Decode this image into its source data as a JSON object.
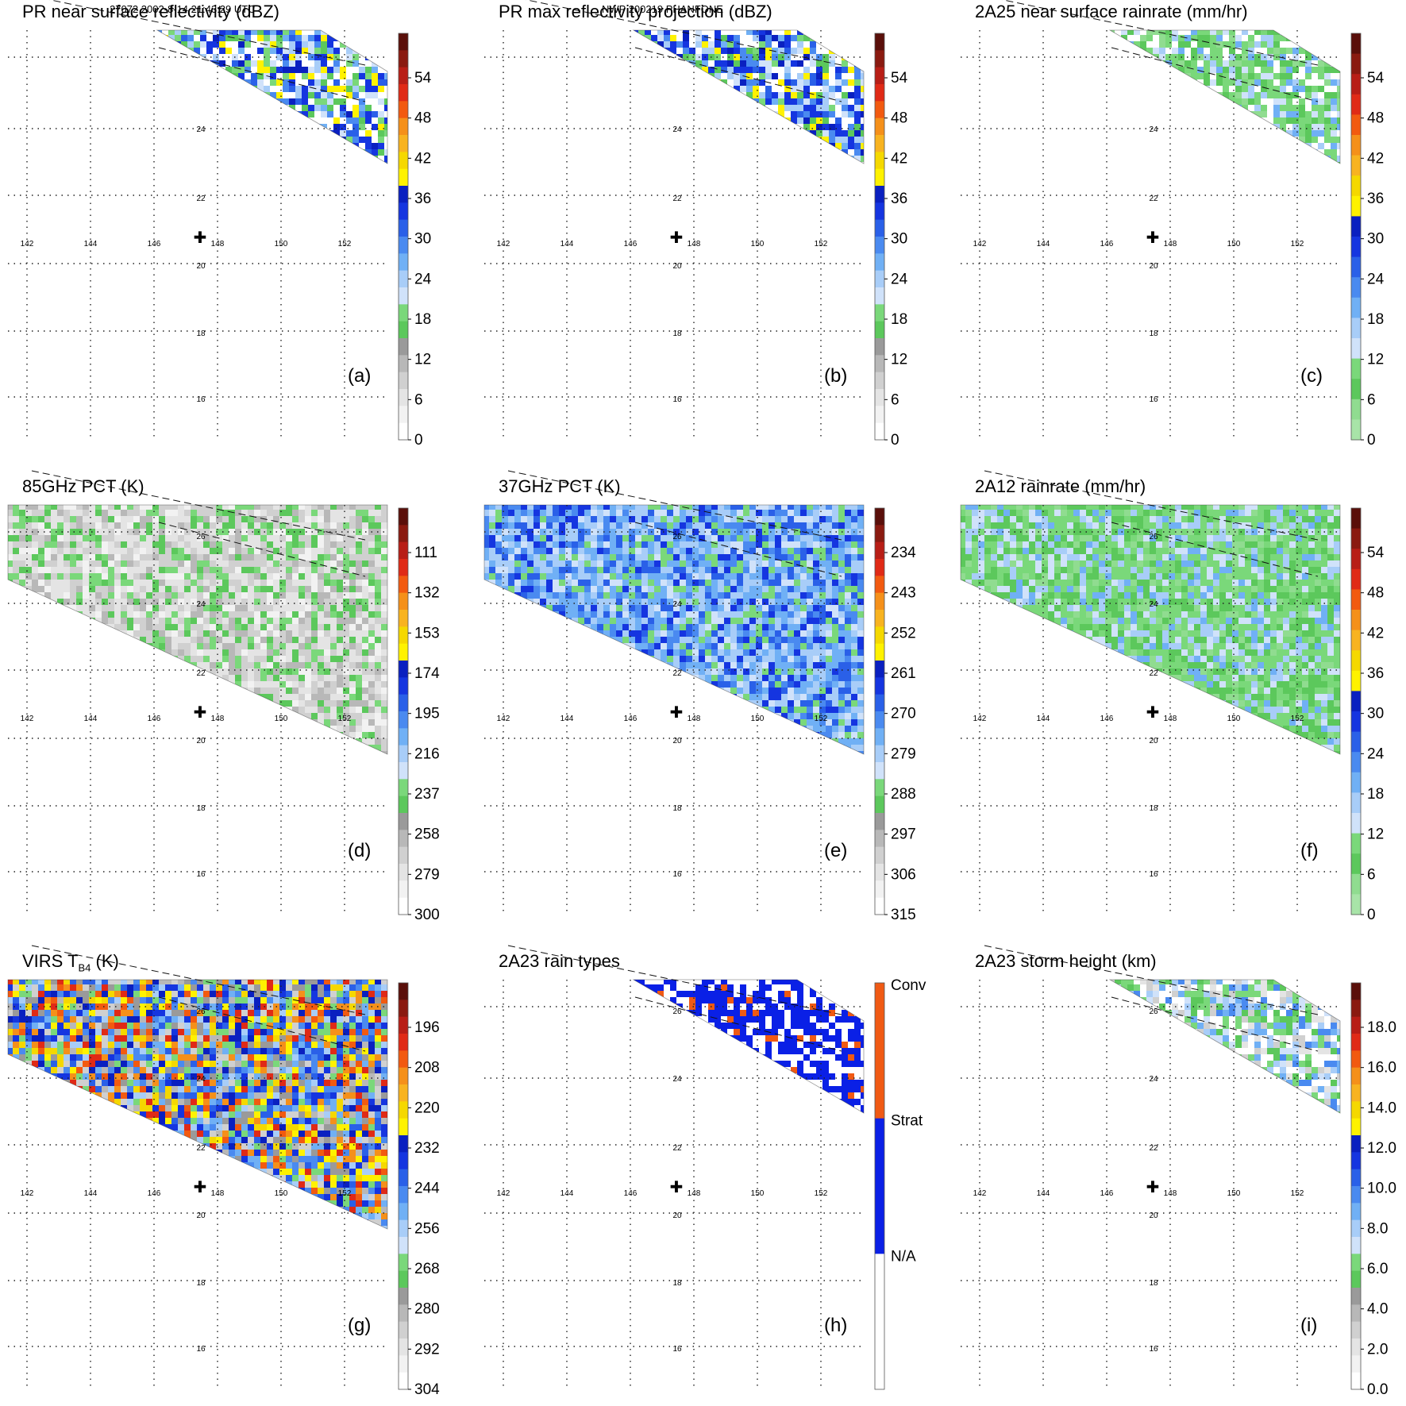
{
  "header": {
    "left": "27072 2002-8-14 21:43:29 UTC",
    "center": "NWP 200219 PHANFONE"
  },
  "map": {
    "lon_ticks": [
      "142",
      "144",
      "146",
      "148",
      "150",
      "152"
    ],
    "lat_ticks": [
      "16",
      "18",
      "20",
      "22",
      "24",
      "26"
    ],
    "center_marker": "storm-center-cross"
  },
  "panels": [
    {
      "id": "a",
      "title": "PR near surface reflectivity (dBZ)",
      "label": "(a)",
      "swath": "pr",
      "cbar": {
        "ticks": [
          "54",
          "48",
          "42",
          "36",
          "30",
          "24",
          "18",
          "12",
          "6",
          "0"
        ],
        "colors": [
          "#5a0f0a",
          "#8a1a10",
          "#b81e16",
          "#e02a16",
          "#f25a10",
          "#f5901a",
          "#f8b320",
          "#f5d800",
          "#fff200",
          "#0a20c0",
          "#1535e0",
          "#2a60e8",
          "#4a8af0",
          "#70b0f5",
          "#a8cdf8",
          "#d0e2fa",
          "#7ad87a",
          "#5cc85c",
          "#9a9a9a",
          "#b8b8b8",
          "#d0d0d0",
          "#e4e4e4",
          "#f2f2f2",
          "#ffffff"
        ]
      }
    },
    {
      "id": "b",
      "title": "PR max reflectivity projection (dBZ)",
      "label": "(b)",
      "swath": "pr",
      "cbar": {
        "ticks": [
          "54",
          "48",
          "42",
          "36",
          "30",
          "24",
          "18",
          "12",
          "6",
          "0"
        ],
        "colors": [
          "#5a0f0a",
          "#8a1a10",
          "#b81e16",
          "#e02a16",
          "#f25a10",
          "#f5901a",
          "#f8b320",
          "#f5d800",
          "#fff200",
          "#0a20c0",
          "#1535e0",
          "#2a60e8",
          "#4a8af0",
          "#70b0f5",
          "#a8cdf8",
          "#d0e2fa",
          "#7ad87a",
          "#5cc85c",
          "#9a9a9a",
          "#b8b8b8",
          "#d0d0d0",
          "#e4e4e4",
          "#f2f2f2",
          "#ffffff"
        ]
      }
    },
    {
      "id": "c",
      "title": "2A25 near surface rainrate (mm/hr)",
      "label": "(c)",
      "swath": "pr",
      "cbar": {
        "ticks": [
          "54",
          "48",
          "42",
          "36",
          "30",
          "24",
          "18",
          "12",
          "6",
          "0"
        ],
        "colors": [
          "#5a0f0a",
          "#8a1a10",
          "#b81e16",
          "#e02a16",
          "#f25a10",
          "#f5901a",
          "#f8b320",
          "#f5d800",
          "#fff200",
          "#0a20c0",
          "#1535e0",
          "#2a60e8",
          "#4a8af0",
          "#70b0f5",
          "#a8cdf8",
          "#d0e2fa",
          "#7ad87a",
          "#5cc85c",
          "#90dc90",
          "#a8e4a8"
        ]
      }
    },
    {
      "id": "d",
      "title": "85GHz PCT (K)",
      "label": "(d)",
      "swath": "wide",
      "cbar": {
        "ticks": [
          "111",
          "132",
          "153",
          "174",
          "195",
          "216",
          "237",
          "258",
          "279",
          "300"
        ],
        "colors": [
          "#5a0f0a",
          "#8a1a10",
          "#b81e16",
          "#e02a16",
          "#f25a10",
          "#f5901a",
          "#f8b320",
          "#f5d800",
          "#fff200",
          "#0a20c0",
          "#1535e0",
          "#2a60e8",
          "#4a8af0",
          "#70b0f5",
          "#a8cdf8",
          "#d0e2fa",
          "#7ad87a",
          "#5cc85c",
          "#9a9a9a",
          "#b8b8b8",
          "#d0d0d0",
          "#e4e4e4",
          "#f2f2f2",
          "#ffffff"
        ]
      }
    },
    {
      "id": "e",
      "title": "37GHz PCT (K)",
      "label": "(e)",
      "swath": "wide",
      "cbar": {
        "ticks": [
          "234",
          "243",
          "252",
          "261",
          "270",
          "279",
          "288",
          "297",
          "306",
          "315"
        ],
        "colors": [
          "#5a0f0a",
          "#8a1a10",
          "#b81e16",
          "#e02a16",
          "#f25a10",
          "#f5901a",
          "#f8b320",
          "#f5d800",
          "#fff200",
          "#0a20c0",
          "#1535e0",
          "#2a60e8",
          "#4a8af0",
          "#70b0f5",
          "#a8cdf8",
          "#d0e2fa",
          "#7ad87a",
          "#5cc85c",
          "#9a9a9a",
          "#b8b8b8",
          "#d0d0d0",
          "#e4e4e4",
          "#f2f2f2",
          "#ffffff"
        ]
      }
    },
    {
      "id": "f",
      "title": "2A12 rainrate (mm/hr)",
      "label": "(f)",
      "swath": "wide",
      "cbar": {
        "ticks": [
          "54",
          "48",
          "42",
          "36",
          "30",
          "24",
          "18",
          "12",
          "6",
          "0"
        ],
        "colors": [
          "#5a0f0a",
          "#8a1a10",
          "#b81e16",
          "#e02a16",
          "#f25a10",
          "#f5901a",
          "#f8b320",
          "#f5d800",
          "#fff200",
          "#0a20c0",
          "#1535e0",
          "#2a60e8",
          "#4a8af0",
          "#70b0f5",
          "#a8cdf8",
          "#d0e2fa",
          "#7ad87a",
          "#5cc85c",
          "#90dc90",
          "#a8e4a8"
        ]
      }
    },
    {
      "id": "g",
      "title": "VIRS T",
      "title_sub": "B4",
      "title_suffix": " (K)",
      "label": "(g)",
      "swath": "wide",
      "cbar": {
        "ticks": [
          "196",
          "208",
          "220",
          "232",
          "244",
          "256",
          "268",
          "280",
          "292",
          "304"
        ],
        "colors": [
          "#5a0f0a",
          "#8a1a10",
          "#b81e16",
          "#e02a16",
          "#f25a10",
          "#f5901a",
          "#f8b320",
          "#f5d800",
          "#fff200",
          "#0a20c0",
          "#1535e0",
          "#2a60e8",
          "#4a8af0",
          "#70b0f5",
          "#a8cdf8",
          "#d0e2fa",
          "#7ad87a",
          "#5cc85c",
          "#9a9a9a",
          "#b8b8b8",
          "#d0d0d0",
          "#e4e4e4",
          "#f2f2f2",
          "#ffffff"
        ]
      }
    },
    {
      "id": "h",
      "title": "2A23 rain types",
      "label": "(h)",
      "swath": "pr",
      "cbar": {
        "ticks": [
          "Conv",
          "Strat",
          "N/A"
        ],
        "categorical": true,
        "colors": [
          "#f05a14",
          "#0a20e6",
          "#ffffff"
        ]
      }
    },
    {
      "id": "i",
      "title": "2A23 storm height (km)",
      "label": "(i)",
      "swath": "pr",
      "cbar": {
        "ticks": [
          "18.0",
          "16.0",
          "14.0",
          "12.0",
          "10.0",
          "8.0",
          "6.0",
          "4.0",
          "2.0",
          "0.0"
        ],
        "colors": [
          "#5a0f0a",
          "#8a1a10",
          "#b81e16",
          "#e02a16",
          "#f25a10",
          "#f5901a",
          "#f8b320",
          "#f5d800",
          "#fff200",
          "#0a20c0",
          "#1535e0",
          "#2a60e8",
          "#4a8af0",
          "#70b0f5",
          "#a8cdf8",
          "#d0e2fa",
          "#7ad87a",
          "#5cc85c",
          "#9a9a9a",
          "#b8b8b8",
          "#d0d0d0",
          "#e4e4e4",
          "#f2f2f2",
          "#ffffff"
        ]
      }
    }
  ]
}
